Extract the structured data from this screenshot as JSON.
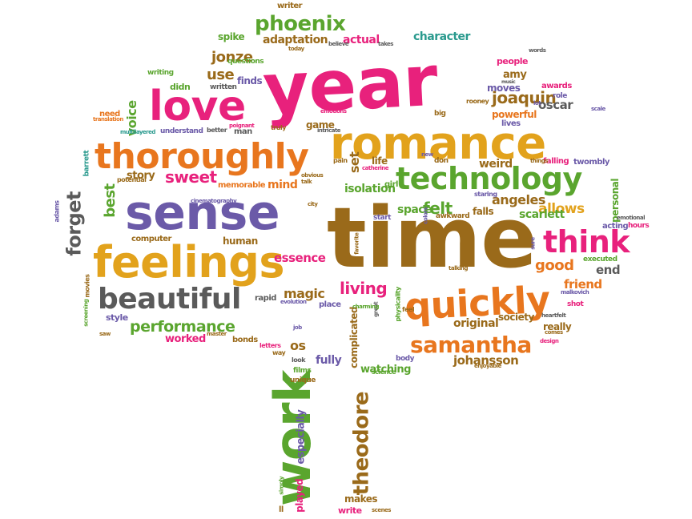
{
  "palette": {
    "pink": "#e8217c",
    "purple": "#6b5aa8",
    "orange": "#e8761e",
    "green": "#5aa52e",
    "gray": "#5a5a5a",
    "gold": "#e2a21c",
    "brown": "#9a6a1a",
    "teal": "#2a9a8e"
  },
  "words": [
    {
      "text": "year"
    },
    {
      "text": "time"
    },
    {
      "text": "romance"
    },
    {
      "text": "sense"
    },
    {
      "text": "feelings"
    },
    {
      "text": "thoroughly"
    },
    {
      "text": "love"
    },
    {
      "text": "technology"
    },
    {
      "text": "quickly"
    },
    {
      "text": "work"
    },
    {
      "text": "beautiful"
    },
    {
      "text": "think"
    },
    {
      "text": "phoenix"
    },
    {
      "text": "samantha"
    },
    {
      "text": "theodore"
    },
    {
      "text": "performance"
    },
    {
      "text": "forget"
    },
    {
      "text": "sweet"
    },
    {
      "text": "joaquin"
    },
    {
      "text": "felt"
    },
    {
      "text": "living"
    },
    {
      "text": "magic"
    },
    {
      "text": "essence"
    },
    {
      "text": "allows"
    },
    {
      "text": "angeles"
    },
    {
      "text": "scarlett"
    },
    {
      "text": "good"
    },
    {
      "text": "friend"
    },
    {
      "text": "end"
    },
    {
      "text": "johansson"
    },
    {
      "text": "original"
    },
    {
      "text": "adaptation"
    },
    {
      "text": "actual"
    },
    {
      "text": "character"
    },
    {
      "text": "jonze"
    },
    {
      "text": "spike"
    },
    {
      "text": "use"
    },
    {
      "text": "voice"
    },
    {
      "text": "best"
    },
    {
      "text": "set"
    },
    {
      "text": "isolation"
    },
    {
      "text": "personal"
    },
    {
      "text": "space"
    },
    {
      "text": "story"
    },
    {
      "text": "mind"
    },
    {
      "text": "memorable"
    },
    {
      "text": "computer"
    },
    {
      "text": "human"
    },
    {
      "text": "worked"
    },
    {
      "text": "os"
    },
    {
      "text": "fully"
    },
    {
      "text": "complicated"
    },
    {
      "text": "watching"
    },
    {
      "text": "especially"
    },
    {
      "text": "played"
    },
    {
      "text": "makes"
    },
    {
      "text": "write"
    },
    {
      "text": "style"
    },
    {
      "text": "society"
    },
    {
      "text": "really"
    },
    {
      "text": "moves"
    },
    {
      "text": "amy"
    },
    {
      "text": "oscar"
    },
    {
      "text": "powerful"
    },
    {
      "text": "lives"
    },
    {
      "text": "weird"
    },
    {
      "text": "falling"
    },
    {
      "text": "twombly"
    },
    {
      "text": "falls"
    },
    {
      "text": "life"
    },
    {
      "text": "pain"
    },
    {
      "text": "girl"
    },
    {
      "text": "finds"
    },
    {
      "text": "didn"
    },
    {
      "text": "writing"
    },
    {
      "text": "written"
    },
    {
      "text": "need"
    },
    {
      "text": "man"
    },
    {
      "text": "understand"
    },
    {
      "text": "game"
    },
    {
      "text": "better"
    },
    {
      "text": "potential"
    },
    {
      "text": "adams"
    },
    {
      "text": "barrett"
    },
    {
      "text": "movies"
    },
    {
      "text": "rapid"
    },
    {
      "text": "place"
    },
    {
      "text": "bonds"
    },
    {
      "text": "letters"
    },
    {
      "text": "way"
    },
    {
      "text": "look"
    },
    {
      "text": "films"
    },
    {
      "text": "unique"
    },
    {
      "text": "body"
    },
    {
      "text": "science"
    },
    {
      "text": "physicality"
    },
    {
      "text": "great"
    },
    {
      "text": "feel"
    },
    {
      "text": "heartfelt"
    },
    {
      "text": "malkovich"
    },
    {
      "text": "shot"
    },
    {
      "text": "executed"
    },
    {
      "text": "acting"
    },
    {
      "text": "hours"
    },
    {
      "text": "emotional"
    },
    {
      "text": "sure"
    },
    {
      "text": "awkward"
    },
    {
      "text": "start"
    },
    {
      "text": "staring"
    },
    {
      "text": "don"
    },
    {
      "text": "people"
    },
    {
      "text": "awards"
    },
    {
      "text": "role"
    },
    {
      "text": "words"
    },
    {
      "text": "music"
    },
    {
      "text": "rooney"
    },
    {
      "text": "lot"
    },
    {
      "text": "scale"
    },
    {
      "text": "big"
    },
    {
      "text": "emotions"
    },
    {
      "text": "believe"
    },
    {
      "text": "takes"
    },
    {
      "text": "writer"
    },
    {
      "text": "questions"
    },
    {
      "text": "today"
    },
    {
      "text": "poignant"
    },
    {
      "text": "truly"
    },
    {
      "text": "intricate"
    },
    {
      "text": "multilayered"
    },
    {
      "text": "translation"
    },
    {
      "text": "cinematography"
    },
    {
      "text": "talk"
    },
    {
      "text": "obvious"
    },
    {
      "text": "city"
    },
    {
      "text": "catherine"
    },
    {
      "text": "new"
    },
    {
      "text": "favorite"
    },
    {
      "text": "colors"
    },
    {
      "text": "talking"
    },
    {
      "text": "evolution"
    },
    {
      "text": "charming"
    },
    {
      "text": "master"
    },
    {
      "text": "saw"
    },
    {
      "text": "screening"
    },
    {
      "text": "job"
    },
    {
      "text": "simply"
    },
    {
      "text": "ll"
    },
    {
      "text": "scenes"
    },
    {
      "text": "enjoyable"
    },
    {
      "text": "design"
    },
    {
      "text": "comes"
    },
    {
      "text": "things"
    }
  ]
}
